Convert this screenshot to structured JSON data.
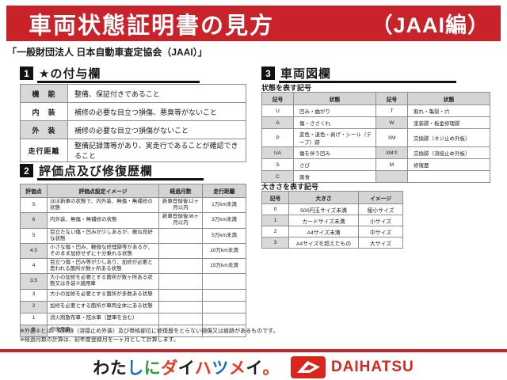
{
  "header": {
    "title": "車両状態証明書の見方",
    "edition": "（JAAI編）"
  },
  "subtitle": "「一般財団法人 日本自動車査定協会（JAAI）」",
  "section1": {
    "number": "1",
    "title": "★の付与欄",
    "rows": [
      {
        "label": "機　能",
        "desc": "整備、保証付きであること"
      },
      {
        "label": "内　装",
        "desc": "補修の必要な目立つ損傷、悪臭等がないこと"
      },
      {
        "label": "外　装",
        "desc": "補修の必要な目立つ損傷がないこと"
      },
      {
        "label": "走行距離",
        "desc": "整備記録簿等があり、実走行であることが確認できること"
      }
    ]
  },
  "section2": {
    "number": "2",
    "title": "評価点及び修復歴欄",
    "headers": [
      "評価点",
      "評価点設定イメージ",
      "経過月数",
      "走行距離"
    ],
    "rows": [
      [
        "S",
        "ほぼ新車の状態で、内外装、無傷・無補修の状態",
        "新車登録後12ヶ月以内",
        "1万km未満"
      ],
      [
        "6",
        "内外装、無傷・無補修の状態",
        "新車登録後36ヶ月以内",
        "3万km未満"
      ],
      [
        "5",
        "目立たない傷・凹みが少しあるが、概ね良好な状態",
        "",
        "5万km未満"
      ],
      [
        "4.5",
        "小さな傷・凹み、軽微な修理跡等があるが、そのまま加修せずに十分乗れる状態",
        "",
        "10万km未満"
      ],
      [
        "4",
        "目立つ傷・凹み等が少しあり、加修が必要と思われる箇所が数ヶ所ある状態",
        "",
        "15万km未満"
      ],
      [
        "3.5",
        "大小の加修を必要とする箇所が数ヶ所ある状態又は外装②適用車",
        "",
        ""
      ],
      [
        "3",
        "大小の加修を必要とする箇所が多数ある状態",
        "",
        ""
      ],
      [
        "2",
        "加修を必要とする箇所が車両全体にある状態",
        "",
        ""
      ],
      [
        "1",
        "消火剤散布車・冠水車（歴車を含む）",
        "",
        ""
      ],
      [
        "R",
        "修復歴車",
        "",
        ""
      ]
    ],
    "notes": [
      "※外装②とは、交換跡（溶接止め外装）及び骨格部位に修復歴をとらない損傷又は痕跡があるものです。",
      "※経過月数の計算は、初年度登録月を一ヶ月として計算します。"
    ]
  },
  "section3": {
    "number": "3",
    "title": "車両図欄",
    "state_table": {
      "label": "状態を表す記号",
      "headers": [
        "記号",
        "状態",
        "記号",
        "状態"
      ],
      "rows": [
        [
          "U",
          "凹み・曲がり",
          "T",
          "割れ・亀裂・穴"
        ],
        [
          "A",
          "傷・ささくれ",
          "W",
          "塗装跡・板金修理跡"
        ],
        [
          "P",
          "変色・退色・剥げ・シール（テープ）跡",
          "XM",
          "交換跡（ネジ止め外板）"
        ],
        [
          "UA",
          "傷を伴う凹み",
          "XM②",
          "交換跡（溶接止め外板）"
        ],
        [
          "S",
          "さび",
          "M",
          "修復歴"
        ],
        [
          "C",
          "腐食",
          "",
          ""
        ]
      ]
    },
    "size_table": {
      "label": "大きさを表す記号",
      "headers": [
        "記号",
        "大きさ",
        "イメージ"
      ],
      "rows": [
        [
          "0",
          "500円玉サイズ未満",
          "極小サイズ"
        ],
        [
          "1",
          "カードサイズ未満",
          "小サイズ"
        ],
        [
          "2",
          "A4サイズ未満",
          "中サイズ"
        ],
        [
          "3",
          "A4サイズを超えたもの",
          "大サイズ"
        ]
      ]
    }
  },
  "footer": {
    "slogan": "わたしにダイハツメイ。",
    "slogan_chars": [
      {
        "ch": "わ",
        "color": "#1d1d1b"
      },
      {
        "ch": "た",
        "color": "#1d1d1b"
      },
      {
        "ch": "し",
        "color": "#1e6fba"
      },
      {
        "ch": "に",
        "color": "#2f9a3f"
      },
      {
        "ch": "ダ",
        "color": "#e8381d"
      },
      {
        "ch": "イ",
        "color": "#1d1d1b"
      },
      {
        "ch": "ハ",
        "color": "#e8381d"
      },
      {
        "ch": "ツ",
        "color": "#1e6fba"
      },
      {
        "ch": "メ",
        "color": "#e8381d"
      },
      {
        "ch": "イ",
        "color": "#1d1d1b"
      },
      {
        "ch": "。",
        "color": "#e8381d"
      }
    ],
    "brand": "DAIHATSU"
  },
  "colors": {
    "banner_red": "#c8222b",
    "brand_red": "#da251d",
    "table_header_gray": "#d4d4d4",
    "alt_cell_gray": "#d9d9d9",
    "badge_black": "#111111"
  }
}
